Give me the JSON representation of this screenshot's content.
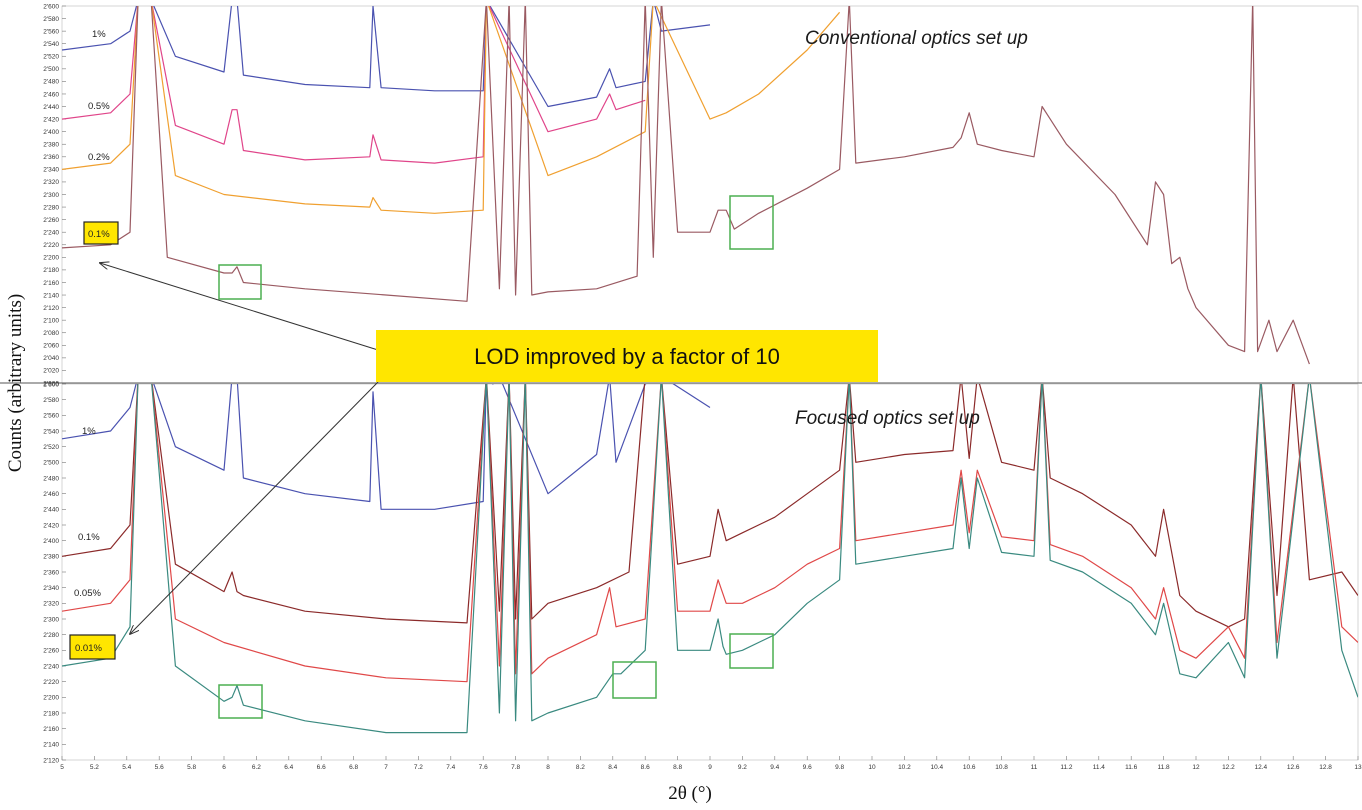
{
  "chart_data": [
    {
      "type": "line",
      "panel": "top",
      "title": "Conventional optics set up",
      "ylim": [
        2000,
        2600
      ],
      "xlim": [
        5,
        13
      ],
      "y_ticks": [
        "2'000",
        "2'020",
        "2'040",
        "2'060",
        "2'080",
        "2'100",
        "2'120",
        "2'140",
        "2'160",
        "2'180",
        "2'200",
        "2'220",
        "2'240",
        "2'260",
        "2'280",
        "2'300",
        "2'320",
        "2'340",
        "2'360",
        "2'380",
        "2'400",
        "2'420",
        "2'440",
        "2'460",
        "2'480",
        "2'500",
        "2'520",
        "2'540",
        "2'560",
        "2'580",
        "2'600"
      ],
      "series": [
        {
          "name": "1%",
          "color": "#4a52b0",
          "x": [
            5.0,
            5.3,
            5.42,
            5.47,
            5.55,
            5.7,
            6.0,
            6.05,
            6.08,
            6.12,
            6.5,
            6.9,
            6.92,
            6.97,
            7.3,
            7.6,
            7.62,
            8.0,
            8.3,
            8.38,
            8.42,
            8.6,
            8.65,
            8.7,
            9.0
          ],
          "y": [
            2530,
            2540,
            2560,
            2610,
            2610,
            2520,
            2495,
            2610,
            2610,
            2490,
            2475,
            2470,
            2600,
            2470,
            2465,
            2465,
            2610,
            2440,
            2455,
            2500,
            2470,
            2480,
            2610,
            2560,
            2570
          ]
        },
        {
          "name": "0.5%",
          "color": "#e0458a",
          "x": [
            5.0,
            5.3,
            5.42,
            5.47,
            5.55,
            5.7,
            6.0,
            6.05,
            6.08,
            6.12,
            6.5,
            6.9,
            6.92,
            6.97,
            7.3,
            7.6,
            7.62,
            8.0,
            8.3,
            8.38,
            8.42,
            8.6
          ],
          "y": [
            2420,
            2430,
            2460,
            2610,
            2610,
            2410,
            2380,
            2435,
            2435,
            2370,
            2355,
            2360,
            2395,
            2355,
            2350,
            2360,
            2610,
            2400,
            2420,
            2460,
            2435,
            2450
          ]
        },
        {
          "name": "0.2%",
          "color": "#f0a030",
          "x": [
            5.0,
            5.3,
            5.42,
            5.47,
            5.55,
            5.7,
            6.0,
            6.5,
            6.9,
            6.92,
            6.97,
            7.3,
            7.6,
            7.62,
            8.0,
            8.3,
            8.6,
            8.65,
            9.0,
            9.1,
            9.3,
            9.6,
            9.8
          ],
          "y": [
            2340,
            2350,
            2380,
            2610,
            2610,
            2330,
            2300,
            2285,
            2280,
            2295,
            2275,
            2270,
            2275,
            2610,
            2330,
            2360,
            2400,
            2610,
            2420,
            2430,
            2460,
            2530,
            2590
          ]
        },
        {
          "name": "0.1%",
          "color": "#9a5a62",
          "x": [
            5.0,
            5.3,
            5.42,
            5.47,
            5.55,
            5.65,
            6.0,
            6.05,
            6.08,
            6.12,
            6.5,
            7.0,
            7.5,
            7.62,
            7.7,
            7.76,
            7.8,
            7.86,
            7.9,
            8.0,
            8.3,
            8.55,
            8.6,
            8.65,
            8.7,
            8.8,
            9.0,
            9.05,
            9.1,
            9.15,
            9.3,
            9.6,
            9.8,
            9.86,
            9.9,
            10.2,
            10.5,
            10.55,
            10.6,
            10.65,
            10.8,
            11.0,
            11.05,
            11.1,
            11.2,
            11.5,
            11.7,
            11.75,
            11.8,
            11.85,
            11.9,
            11.95,
            12.0,
            12.2,
            12.3,
            12.35,
            12.38,
            12.45,
            12.5,
            12.6,
            12.7
          ],
          "y": [
            2215,
            2220,
            2240,
            2610,
            2610,
            2200,
            2175,
            2175,
            2185,
            2160,
            2150,
            2140,
            2130,
            2610,
            2150,
            2610,
            2140,
            2610,
            2140,
            2145,
            2150,
            2170,
            2610,
            2200,
            2610,
            2240,
            2240,
            2275,
            2275,
            2245,
            2270,
            2310,
            2340,
            2610,
            2350,
            2360,
            2375,
            2390,
            2430,
            2380,
            2370,
            2360,
            2440,
            2420,
            2380,
            2300,
            2220,
            2320,
            2300,
            2190,
            2200,
            2150,
            2120,
            2060,
            2050,
            2610,
            2050,
            2100,
            2050,
            2100,
            2030
          ]
        }
      ]
    },
    {
      "type": "line",
      "panel": "bottom",
      "title": "Focused optics set up",
      "ylim": [
        2120,
        2600
      ],
      "xlim": [
        5,
        13
      ],
      "y_ticks": [
        "2'120",
        "2'140",
        "2'160",
        "2'180",
        "2'200",
        "2'220",
        "2'240",
        "2'260",
        "2'280",
        "2'300",
        "2'320",
        "2'340",
        "2'360",
        "2'380",
        "2'400",
        "2'420",
        "2'440",
        "2'460",
        "2'480",
        "2'500",
        "2'520",
        "2'540",
        "2'560",
        "2'580",
        "2'600"
      ],
      "x_ticks": [
        "5",
        "5.2",
        "5.4",
        "5.6",
        "5.8",
        "6",
        "6.2",
        "6.4",
        "6.6",
        "6.8",
        "7",
        "7.2",
        "7.4",
        "7.6",
        "7.8",
        "8",
        "8.2",
        "8.4",
        "8.6",
        "8.8",
        "9",
        "9.2",
        "9.4",
        "9.6",
        "9.8",
        "10",
        "10.2",
        "10.4",
        "10.6",
        "10.8",
        "11",
        "11.2",
        "11.4",
        "11.6",
        "11.8",
        "12",
        "12.2",
        "12.4",
        "12.6",
        "12.8",
        "13"
      ],
      "series": [
        {
          "name": "1%",
          "color": "#4a52b0",
          "x": [
            5.0,
            5.3,
            5.42,
            5.47,
            5.55,
            5.7,
            6.0,
            6.05,
            6.08,
            6.12,
            6.5,
            6.9,
            6.92,
            6.97,
            7.3,
            7.6,
            7.62,
            7.66,
            7.7,
            8.0,
            8.3,
            8.38,
            8.42,
            8.6,
            8.7,
            9.0
          ],
          "y": [
            2530,
            2540,
            2570,
            2610,
            2610,
            2520,
            2490,
            2610,
            2610,
            2480,
            2460,
            2450,
            2590,
            2440,
            2440,
            2450,
            2610,
            2600,
            2610,
            2460,
            2510,
            2610,
            2500,
            2600,
            2610,
            2570
          ]
        },
        {
          "name": "0.1%",
          "color": "#8b2a2a",
          "x": [
            5.0,
            5.3,
            5.42,
            5.47,
            5.55,
            5.7,
            6.0,
            6.05,
            6.08,
            6.12,
            6.5,
            7.0,
            7.5,
            7.62,
            7.7,
            7.76,
            7.8,
            7.86,
            7.9,
            8.0,
            8.3,
            8.5,
            8.6,
            8.7,
            8.8,
            9.0,
            9.05,
            9.1,
            9.2,
            9.4,
            9.6,
            9.8,
            9.86,
            9.9,
            10.2,
            10.5,
            10.55,
            10.6,
            10.65,
            10.8,
            11.0,
            11.05,
            11.1,
            11.3,
            11.6,
            11.75,
            11.8,
            11.9,
            12.0,
            12.2,
            12.3,
            12.4,
            12.5,
            12.6,
            12.7,
            12.9,
            13.0
          ],
          "y": [
            2380,
            2390,
            2420,
            2610,
            2610,
            2370,
            2335,
            2360,
            2335,
            2330,
            2310,
            2300,
            2295,
            2610,
            2310,
            2610,
            2300,
            2610,
            2300,
            2320,
            2340,
            2360,
            2610,
            2610,
            2370,
            2380,
            2440,
            2400,
            2410,
            2430,
            2460,
            2490,
            2610,
            2500,
            2510,
            2515,
            2610,
            2505,
            2610,
            2500,
            2490,
            2610,
            2480,
            2460,
            2420,
            2380,
            2440,
            2330,
            2310,
            2290,
            2300,
            2610,
            2330,
            2610,
            2350,
            2360,
            2330
          ]
        },
        {
          "name": "0.05%",
          "color": "#e04848",
          "x": [
            5.0,
            5.3,
            5.42,
            5.47,
            5.55,
            5.7,
            6.0,
            6.5,
            7.0,
            7.5,
            7.62,
            7.7,
            7.76,
            7.8,
            7.86,
            7.9,
            8.0,
            8.3,
            8.38,
            8.42,
            8.6,
            8.7,
            8.8,
            9.0,
            9.05,
            9.1,
            9.2,
            9.4,
            9.6,
            9.8,
            9.86,
            9.9,
            10.2,
            10.5,
            10.55,
            10.6,
            10.65,
            10.8,
            11.0,
            11.05,
            11.1,
            11.3,
            11.6,
            11.75,
            11.8,
            11.9,
            12.0,
            12.2,
            12.3,
            12.4,
            12.5,
            12.7,
            12.9,
            13.0
          ],
          "y": [
            2310,
            2320,
            2350,
            2610,
            2610,
            2300,
            2270,
            2240,
            2225,
            2220,
            2610,
            2240,
            2610,
            2230,
            2610,
            2230,
            2250,
            2280,
            2340,
            2290,
            2300,
            2610,
            2310,
            2310,
            2350,
            2320,
            2320,
            2340,
            2370,
            2390,
            2610,
            2400,
            2410,
            2420,
            2490,
            2410,
            2490,
            2405,
            2400,
            2610,
            2395,
            2380,
            2340,
            2300,
            2340,
            2260,
            2250,
            2290,
            2250,
            2610,
            2270,
            2610,
            2290,
            2270
          ]
        },
        {
          "name": "0.01%",
          "color": "#3a8a80",
          "x": [
            5.0,
            5.3,
            5.42,
            5.47,
            5.55,
            5.7,
            6.0,
            6.05,
            6.08,
            6.12,
            6.5,
            7.0,
            7.5,
            7.62,
            7.7,
            7.76,
            7.8,
            7.86,
            7.9,
            8.0,
            8.3,
            8.4,
            8.45,
            8.6,
            8.7,
            8.8,
            9.0,
            9.05,
            9.08,
            9.1,
            9.2,
            9.4,
            9.6,
            9.8,
            9.86,
            9.9,
            10.2,
            10.5,
            10.55,
            10.6,
            10.65,
            10.8,
            11.0,
            11.05,
            11.1,
            11.3,
            11.6,
            11.75,
            11.8,
            11.9,
            12.0,
            12.2,
            12.3,
            12.4,
            12.5,
            12.7,
            12.9,
            13.0
          ],
          "y": [
            2240,
            2250,
            2290,
            2610,
            2610,
            2240,
            2195,
            2200,
            2215,
            2190,
            2170,
            2155,
            2155,
            2610,
            2180,
            2610,
            2170,
            2610,
            2170,
            2180,
            2200,
            2230,
            2230,
            2260,
            2610,
            2260,
            2260,
            2300,
            2265,
            2255,
            2260,
            2280,
            2320,
            2350,
            2610,
            2370,
            2380,
            2390,
            2480,
            2390,
            2480,
            2385,
            2380,
            2610,
            2375,
            2360,
            2320,
            2280,
            2320,
            2230,
            2225,
            2270,
            2225,
            2610,
            2250,
            2610,
            2260,
            2200
          ]
        }
      ]
    }
  ],
  "annotations": {
    "top_highlight_label": "0.1%",
    "bottom_highlight_label": "0.01%",
    "lod_callout": "LOD improved by a factor of 10"
  },
  "axes": {
    "ylabel": "Counts (arbitrary units)",
    "xlabel": "2θ (°)"
  },
  "colors": {
    "highlight_fill": "#ffe600",
    "callout_fill": "#ffe600",
    "box_stroke": "#4caf50"
  }
}
